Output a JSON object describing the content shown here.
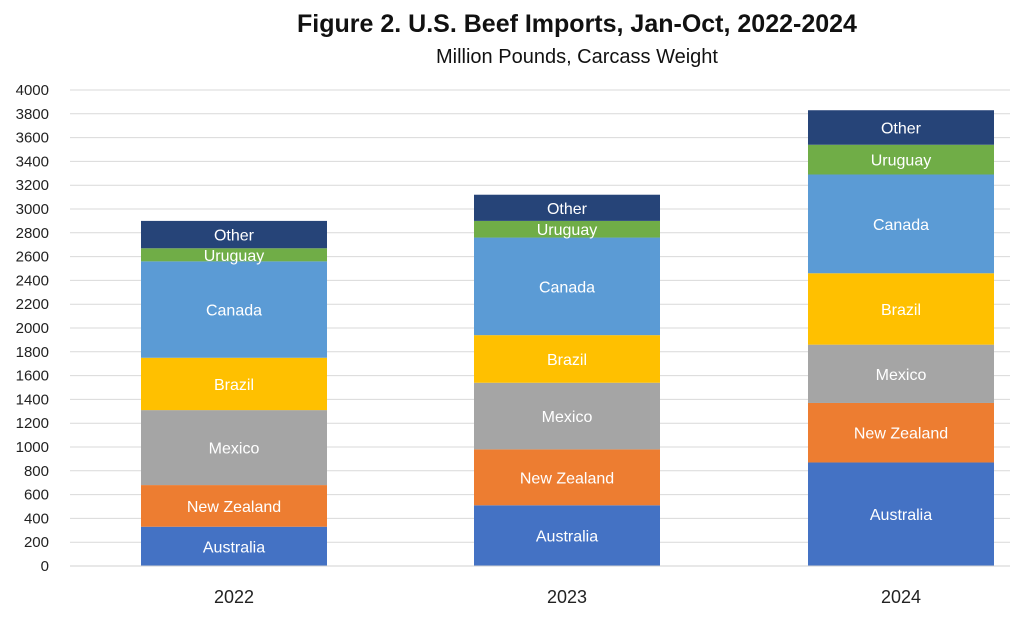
{
  "chart_data": {
    "type": "bar",
    "stacked": true,
    "title": "Figure 2. U.S. Beef Imports, Jan-Oct,  2022-2024",
    "subtitle": "Million Pounds, Carcass Weight",
    "categories": [
      "2022",
      "2023",
      "2024"
    ],
    "ylim": [
      0,
      4000
    ],
    "yticks": [
      0,
      200,
      400,
      600,
      800,
      1000,
      1200,
      1400,
      1600,
      1800,
      2000,
      2200,
      2400,
      2600,
      2800,
      3000,
      3200,
      3400,
      3600,
      3800,
      4000
    ],
    "grid": true,
    "legend": "none (labels inside segments)",
    "series": [
      {
        "name": "Australia",
        "color": "#4472C4",
        "values": [
          330,
          510,
          870
        ]
      },
      {
        "name": "New Zealand",
        "color": "#ED7D31",
        "values": [
          350,
          470,
          500
        ]
      },
      {
        "name": "Mexico",
        "color": "#A5A5A5",
        "values": [
          630,
          560,
          490
        ]
      },
      {
        "name": "Brazil",
        "color": "#FFC000",
        "values": [
          440,
          400,
          600
        ]
      },
      {
        "name": "Canada",
        "color": "#5B9BD5",
        "values": [
          810,
          820,
          830
        ]
      },
      {
        "name": "Uruguay",
        "color": "#70AD47",
        "values": [
          110,
          140,
          250
        ]
      },
      {
        "name": "Other",
        "color": "#264478",
        "values": [
          230,
          220,
          290
        ]
      }
    ]
  }
}
